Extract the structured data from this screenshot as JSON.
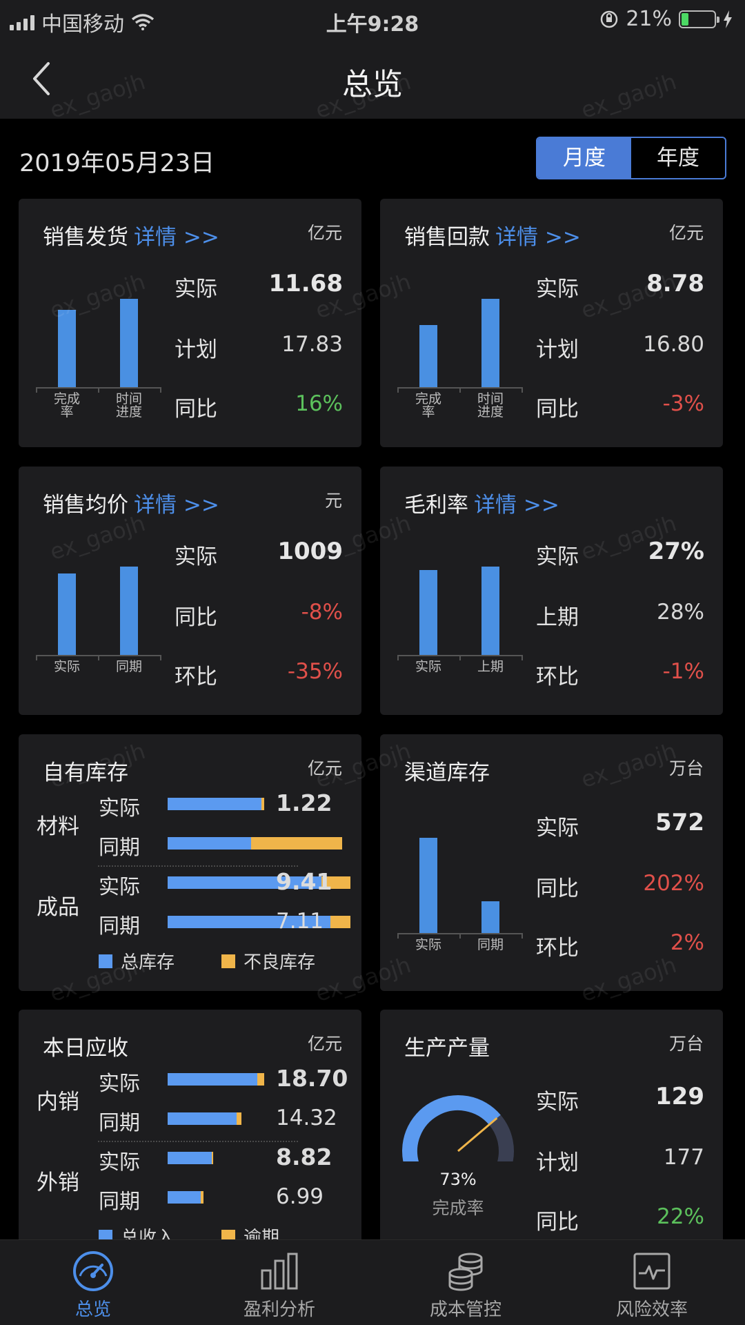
{
  "status_bar": {
    "carrier": "中国移动",
    "time": "上午9:28",
    "battery": "21%",
    "battery_level": 0.21
  },
  "nav": {
    "title": "总览"
  },
  "date": "2019年05月23日",
  "period_toggle": {
    "options": [
      "月度",
      "年度"
    ],
    "selected": "月度"
  },
  "watermark": "ex_gaojh",
  "cards": {
    "sales_shipment": {
      "title": "销售发货",
      "link": "详情 >>",
      "unit": "亿元",
      "chart": {
        "type": "bar",
        "categories": [
          "完成\n率",
          "时间\n进度"
        ],
        "values": [
          0.65,
          0.74
        ]
      },
      "rows": [
        {
          "label": "实际",
          "value": "11.68"
        },
        {
          "label": "计划",
          "value": "17.83"
        },
        {
          "label": "同比",
          "value": "16%"
        }
      ]
    },
    "sales_collection": {
      "title": "销售回款",
      "link": "详情 >>",
      "unit": "亿元",
      "chart": {
        "type": "bar",
        "categories": [
          "完成\n率",
          "时间\n进度"
        ],
        "values": [
          0.52,
          0.74
        ]
      },
      "rows": [
        {
          "label": "实际",
          "value": "8.78"
        },
        {
          "label": "计划",
          "value": "16.80"
        },
        {
          "label": "同比",
          "value": "-3%"
        }
      ]
    },
    "avg_price": {
      "title": "销售均价",
      "link": "详情 >>",
      "unit": "元",
      "chart": {
        "type": "bar",
        "categories": [
          "实际",
          "同期"
        ],
        "values": [
          1009,
          1097
        ]
      },
      "rows": [
        {
          "label": "实际",
          "value": "1009"
        },
        {
          "label": "同比",
          "value": "-8%"
        },
        {
          "label": "环比",
          "value": "-35%"
        }
      ]
    },
    "gross_margin": {
      "title": "毛利率",
      "link": "详情 >>",
      "unit": "",
      "chart": {
        "type": "bar",
        "categories": [
          "实际",
          "上期"
        ],
        "values": [
          27,
          28
        ]
      },
      "rows": [
        {
          "label": "实际",
          "value": "27%"
        },
        {
          "label": "上期",
          "value": "28%"
        },
        {
          "label": "环比",
          "value": "-1%"
        }
      ]
    },
    "own_inventory": {
      "title": "自有库存",
      "unit": "亿元",
      "groups": [
        {
          "name": "材料",
          "rows": [
            {
              "label": "实际",
              "total": 1.22,
              "bad_fraction": 0.03,
              "value": "1.22"
            },
            {
              "label": "同期",
              "total": 2.2,
              "bad_fraction": 0.52,
              "value": ""
            }
          ]
        },
        {
          "name": "成品",
          "rows": [
            {
              "label": "实际",
              "total": 9.41,
              "bad_fraction": 0.16,
              "value": "9.41"
            },
            {
              "label": "同期",
              "total": 7.11,
              "bad_fraction": 0.11,
              "value": "7.11"
            }
          ]
        }
      ],
      "legend": [
        "总库存",
        "不良库存"
      ]
    },
    "channel_inventory": {
      "title": "渠道库存",
      "unit": "万台",
      "chart": {
        "type": "bar",
        "categories": [
          "实际",
          "同期"
        ],
        "values": [
          572,
          189
        ]
      },
      "rows": [
        {
          "label": "实际",
          "value": "572"
        },
        {
          "label": "同比",
          "value": "202%"
        },
        {
          "label": "环比",
          "value": "2%"
        }
      ]
    },
    "daily_receivable": {
      "title": "本日应收",
      "unit": "亿元",
      "groups": [
        {
          "name": "内销",
          "rows": [
            {
              "label": "实际",
              "total": 18.7,
              "bad_fraction": 0.07,
              "value": "18.70"
            },
            {
              "label": "同期",
              "total": 14.32,
              "bad_fraction": 0.07,
              "value": "14.32"
            }
          ]
        },
        {
          "name": "外销",
          "rows": [
            {
              "label": "实际",
              "total": 8.82,
              "bad_fraction": 0.03,
              "value": "8.82"
            },
            {
              "label": "同期",
              "total": 6.99,
              "bad_fraction": 0.09,
              "value": "6.99"
            }
          ]
        }
      ],
      "legend": [
        "总收入",
        "逾期"
      ]
    },
    "production": {
      "title": "生产产量",
      "unit": "万台",
      "gauge": {
        "percent": "73%",
        "fraction": 0.73,
        "label": "完成率"
      },
      "rows": [
        {
          "label": "实际",
          "value": "129"
        },
        {
          "label": "计划",
          "value": "177"
        },
        {
          "label": "同比",
          "value": "22%"
        }
      ]
    }
  },
  "tabbar": [
    {
      "label": "总览",
      "icon": "dashboard-gauge-icon",
      "active": true
    },
    {
      "label": "盈利分析",
      "icon": "bar-chart-icon",
      "active": false
    },
    {
      "label": "成本管控",
      "icon": "coin-stack-icon",
      "active": false
    },
    {
      "label": "风险效率",
      "icon": "pulse-monitor-icon",
      "active": false
    }
  ],
  "colors": {
    "accent": "#4a7bd6",
    "bar_blue": "#4a90e2",
    "bad_orange": "#f0b54a",
    "positive": "#5cc15c",
    "negative": "#e0504a",
    "card_bg": "#1d1d1f"
  }
}
